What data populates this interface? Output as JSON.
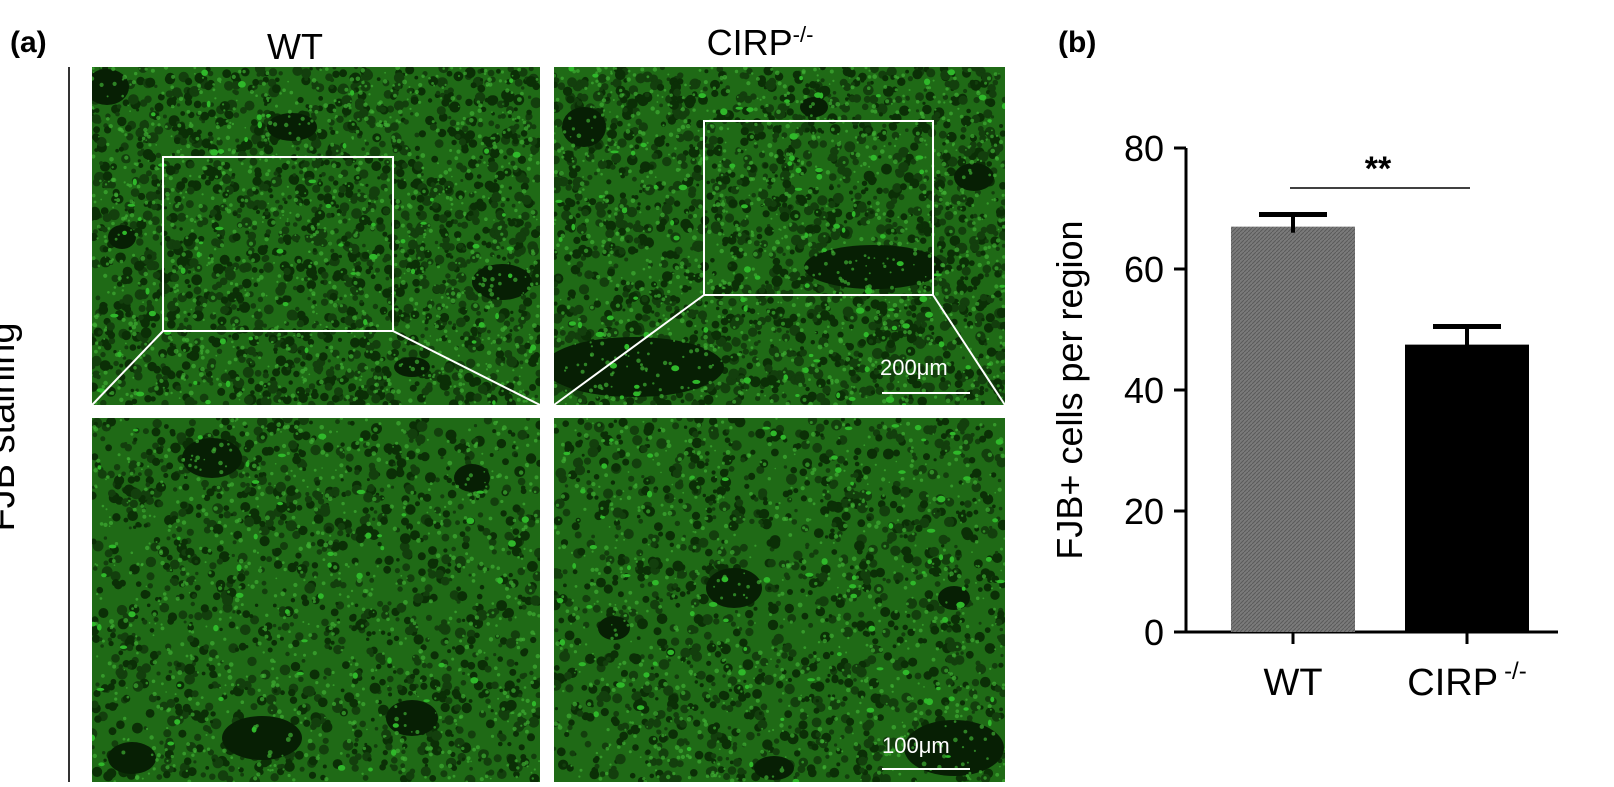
{
  "panel_a": {
    "label": "(a)",
    "col_wt": "WT",
    "col_ko": "CIRP",
    "col_ko_sup": "-/-",
    "row_label": "FJB staining",
    "scale_top": "200μm",
    "scale_bottom": "100μm",
    "stain_color": "#2fb82a"
  },
  "panel_b": {
    "label": "(b)",
    "significance": "**"
  },
  "chart_data": {
    "type": "bar",
    "categories": [
      "WT",
      "CIRP"
    ],
    "category_sup": [
      "",
      "-/-"
    ],
    "values": [
      67,
      47.5
    ],
    "errors": [
      2,
      3
    ],
    "colors": [
      "#7a7a7a",
      "#000000"
    ],
    "ylabel": "FJB+ cells per region",
    "ylim": [
      0,
      80
    ],
    "yticks": [
      0,
      20,
      40,
      60,
      80
    ],
    "significance": "**",
    "grid": false
  }
}
